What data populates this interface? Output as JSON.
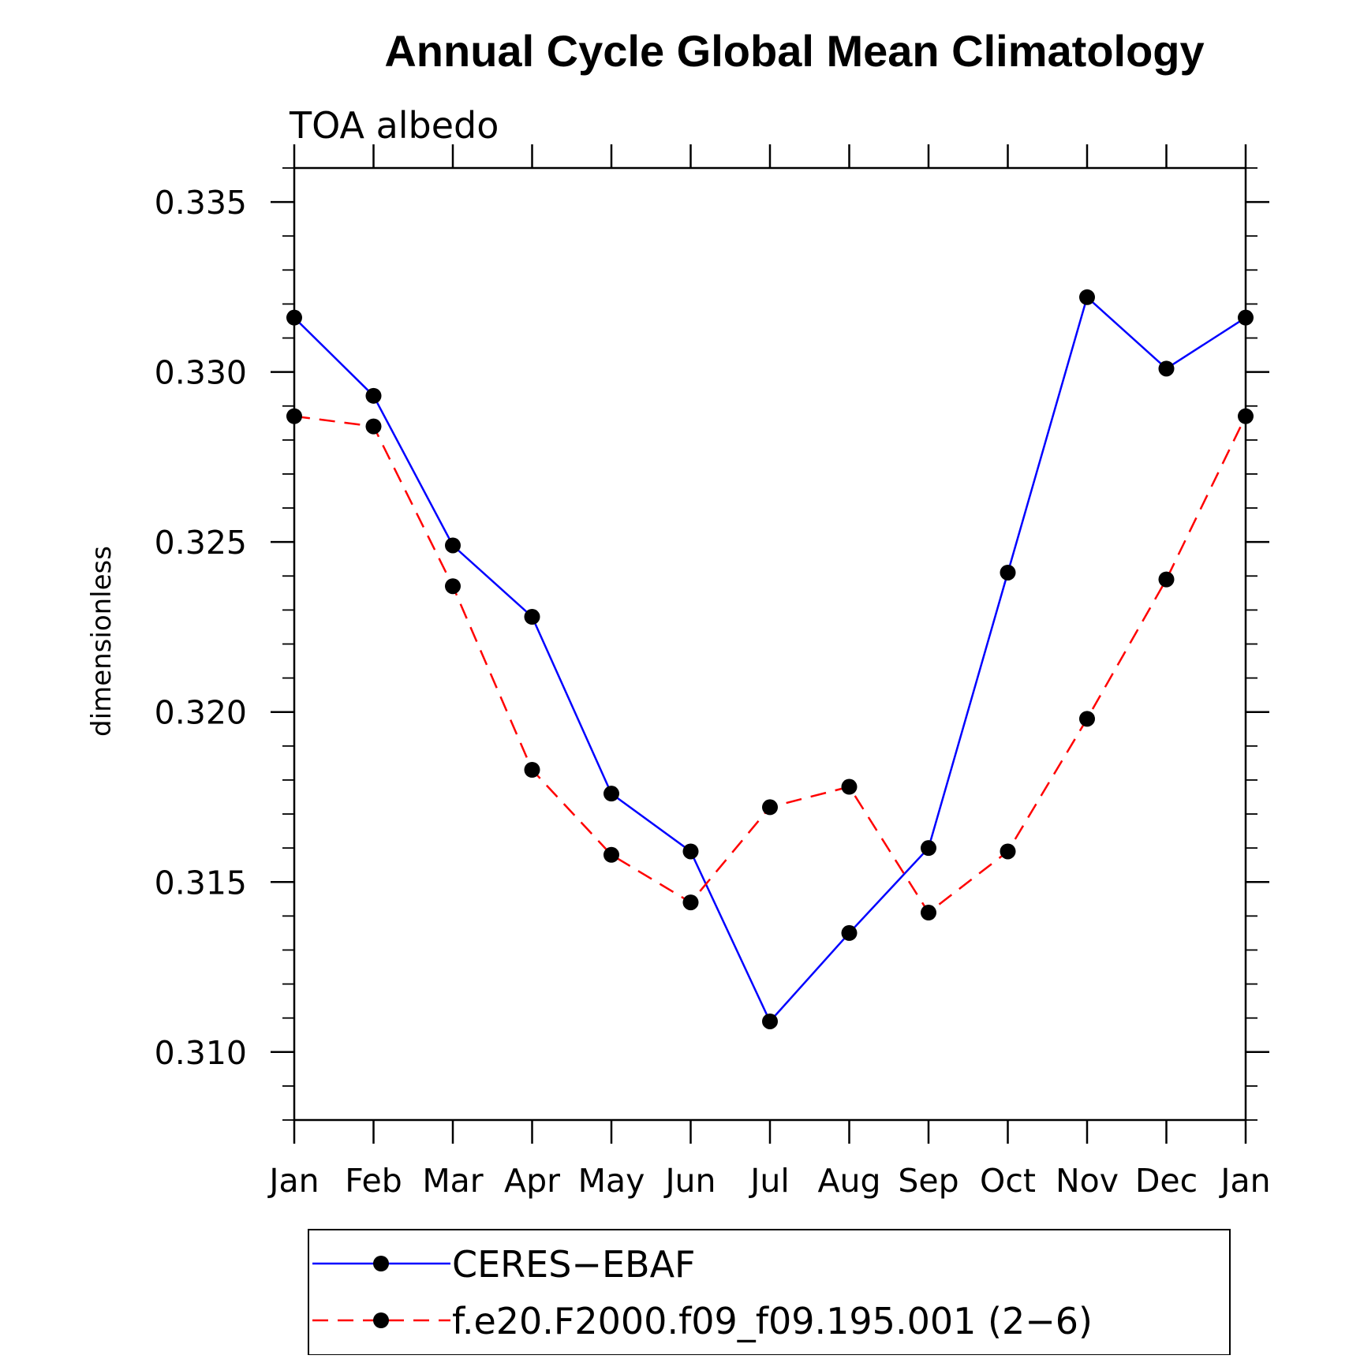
{
  "chart_data": {
    "type": "line",
    "title": "Annual Cycle Global Mean Climatology",
    "subtitle": "TOA albedo",
    "xlabel": "",
    "ylabel": "dimensionless",
    "categories": [
      "Jan",
      "Feb",
      "Mar",
      "Apr",
      "May",
      "Jun",
      "Jul",
      "Aug",
      "Sep",
      "Oct",
      "Nov",
      "Dec",
      "Jan"
    ],
    "ylim": [
      0.308,
      0.336
    ],
    "yticks": [
      "0.310",
      "0.315",
      "0.320",
      "0.325",
      "0.330",
      "0.335"
    ],
    "grid": false,
    "legend_position": "bottom",
    "series": [
      {
        "name": "CERES−EBAF",
        "color": "#0000ff",
        "line_style": "solid",
        "marker": "filled-circle",
        "values": [
          0.3316,
          0.3293,
          0.3249,
          0.3228,
          0.3176,
          0.3159,
          0.3109,
          0.3135,
          0.316,
          0.3241,
          0.3322,
          0.3301,
          0.3316
        ]
      },
      {
        "name": "f.e20.F2000.f09_f09.195.001 (2−6)",
        "color": "#ff0000",
        "line_style": "dashed",
        "marker": "filled-circle",
        "values": [
          0.3287,
          0.3284,
          0.3237,
          0.3183,
          0.3158,
          0.3144,
          0.3172,
          0.3178,
          0.3141,
          0.3159,
          0.3198,
          0.3239,
          0.3287
        ]
      }
    ]
  }
}
